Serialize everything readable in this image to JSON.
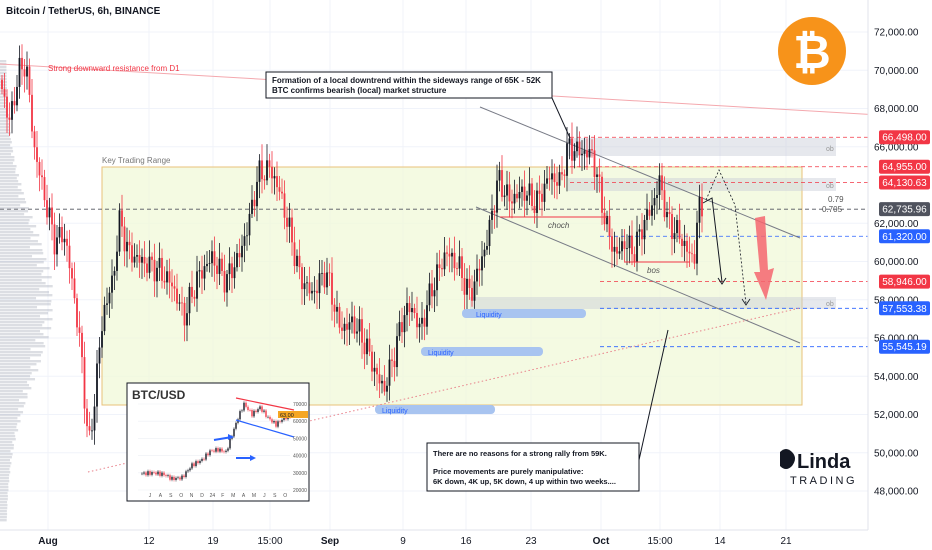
{
  "header": {
    "title": "Bitcoin / TetherUS, 6h, BINANCE"
  },
  "chart_data": {
    "type": "candlestick",
    "y_range": [
      46500,
      74000
    ],
    "y_ticks": [
      "72,000.00",
      "70,000.00",
      "68,000.00",
      "66,000.00",
      "62,000.00",
      "60,000.00",
      "58,000.00",
      "56,000.00",
      "54,000.00",
      "52,000.00",
      "50,000.00",
      "48,000.00"
    ],
    "x_tick_labels": [
      "Aug",
      "12",
      "19",
      "15:00",
      "Sep",
      "9",
      "16",
      "23",
      "Oct",
      "15:00",
      "14",
      "21"
    ],
    "price_tags": [
      {
        "label": "66,498.00",
        "value": 66498,
        "color": "#f23645"
      },
      {
        "label": "64,955.00",
        "value": 64955,
        "color": "#f23645"
      },
      {
        "label": "64,130.63",
        "value": 64130.63,
        "color": "#f23645"
      },
      {
        "label": "62,735.96",
        "value": 62735.96,
        "color": "#50535e"
      },
      {
        "label": "61,320.00",
        "value": 61320,
        "color": "#2962ff"
      },
      {
        "label": "58,946.00",
        "value": 58946,
        "color": "#f23645"
      },
      {
        "label": "57,553.38",
        "value": 57553.38,
        "color": "#2962ff"
      },
      {
        "label": "55,545.19",
        "value": 55545.19,
        "color": "#2962ff"
      }
    ],
    "fib_levels": [
      "0.79",
      "0.705"
    ],
    "ob_label": "ob",
    "annotations": {
      "resistance": "Strong downward resistance from D1",
      "key_range": "Key Trading Range",
      "choch": "choch",
      "bos": "bos",
      "liquidity": "Liquidity",
      "callout_top_1": "Formation of a local downtrend within the sideways range of 65K - 52K",
      "callout_top_2": "BTC confirms bearish (local) market structure",
      "callout_bottom_1": "There are no reasons for a strong rally from 59K.",
      "callout_bottom_2": "Price movements are purely manipulative:",
      "callout_bottom_3": "6K down, 4K up, 5K down, 4 up within two weeks...."
    },
    "inset": {
      "title": "BTC/USD",
      "y_ticks": [
        "70000",
        "60000",
        "50000",
        "40000",
        "30000",
        "20000"
      ],
      "x_ticks": [
        "J",
        "A",
        "S",
        "O",
        "N",
        "D",
        "24",
        "F",
        "M",
        "A",
        "M",
        "J",
        "S",
        "O"
      ],
      "last_price": "63,00"
    }
  },
  "logo": {
    "line1": "Linda",
    "line2": "TRADING"
  }
}
